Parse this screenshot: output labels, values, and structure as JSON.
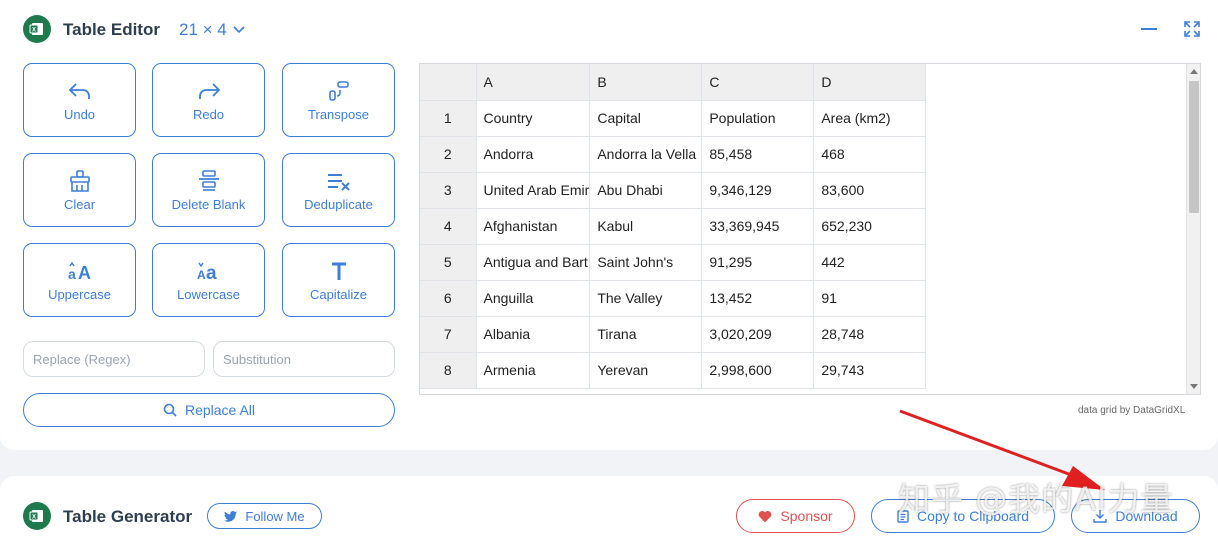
{
  "editor": {
    "title": "Table Editor",
    "dims": "21 × 4",
    "tools": [
      {
        "label": "Undo"
      },
      {
        "label": "Redo"
      },
      {
        "label": "Transpose"
      },
      {
        "label": "Clear"
      },
      {
        "label": "Delete Blank"
      },
      {
        "label": "Deduplicate"
      },
      {
        "label": "Uppercase"
      },
      {
        "label": "Lowercase"
      },
      {
        "label": "Capitalize"
      }
    ],
    "replace_placeholder": "Replace (Regex)",
    "substitution_placeholder": "Substitution",
    "replace_all_label": "Replace All"
  },
  "grid": {
    "columns": [
      "A",
      "B",
      "C",
      "D"
    ],
    "rows": [
      {
        "num": "1",
        "cells": [
          "Country",
          "Capital",
          "Population",
          "Area (km2)"
        ]
      },
      {
        "num": "2",
        "cells": [
          "Andorra",
          "Andorra la Vella",
          "85,458",
          "468"
        ]
      },
      {
        "num": "3",
        "cells": [
          "United Arab Emir",
          "Abu Dhabi",
          "9,346,129",
          "83,600"
        ]
      },
      {
        "num": "4",
        "cells": [
          "Afghanistan",
          "Kabul",
          "33,369,945",
          "652,230"
        ]
      },
      {
        "num": "5",
        "cells": [
          "Antigua and Bart",
          "Saint John's",
          "91,295",
          "442"
        ]
      },
      {
        "num": "6",
        "cells": [
          "Anguilla",
          "The Valley",
          "13,452",
          "91"
        ]
      },
      {
        "num": "7",
        "cells": [
          "Albania",
          "Tirana",
          "3,020,209",
          "28,748"
        ]
      },
      {
        "num": "8",
        "cells": [
          "Armenia",
          "Yerevan",
          "2,998,600",
          "29,743"
        ]
      }
    ],
    "credit": "data grid by DataGridXL"
  },
  "generator": {
    "title": "Table Generator",
    "follow_label": "Follow Me",
    "sponsor_label": "Sponsor",
    "copy_label": "Copy to Clipboard",
    "download_label": "Download"
  },
  "watermark": "知乎 @我的AI力量",
  "colors": {
    "accent": "#3d7ed8",
    "brand": "#1e7a4c",
    "sponsor": "#e05252",
    "arrow": "#e02020"
  }
}
